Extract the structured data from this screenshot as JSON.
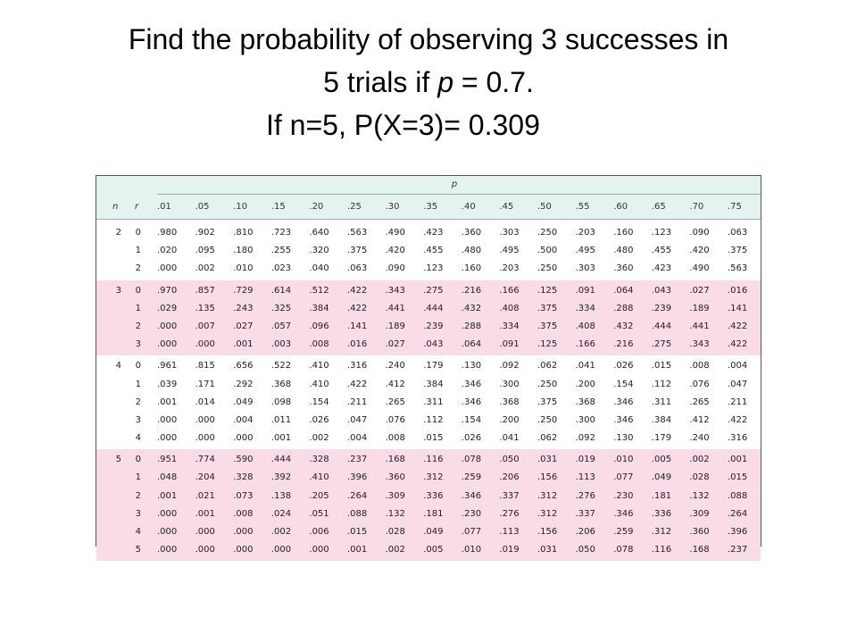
{
  "title": {
    "line1": "Find the probability of observing 3 successes in",
    "line2_prefix": "5 trials if ",
    "line2_var": "p",
    "line2_suffix": " = 0.7.",
    "line3": "If n=5, P(X=3)= 0.309"
  },
  "table": {
    "p_label": "p",
    "n_label": "n",
    "r_label": "r",
    "p_values": [
      ".01",
      ".05",
      ".10",
      ".15",
      ".20",
      ".25",
      ".30",
      ".35",
      ".40",
      ".45",
      ".50",
      ".55",
      ".60",
      ".65",
      ".70",
      ".75"
    ],
    "groups": [
      {
        "n": "2",
        "rows": [
          {
            "r": "0",
            "values": [
              ".980",
              ".902",
              ".810",
              ".723",
              ".640",
              ".563",
              ".490",
              ".423",
              ".360",
              ".303",
              ".250",
              ".203",
              ".160",
              ".123",
              ".090",
              ".063"
            ]
          },
          {
            "r": "1",
            "values": [
              ".020",
              ".095",
              ".180",
              ".255",
              ".320",
              ".375",
              ".420",
              ".455",
              ".480",
              ".495",
              ".500",
              ".495",
              ".480",
              ".455",
              ".420",
              ".375"
            ]
          },
          {
            "r": "2",
            "values": [
              ".000",
              ".002",
              ".010",
              ".023",
              ".040",
              ".063",
              ".090",
              ".123",
              ".160",
              ".203",
              ".250",
              ".303",
              ".360",
              ".423",
              ".490",
              ".563"
            ]
          }
        ]
      },
      {
        "n": "3",
        "rows": [
          {
            "r": "0",
            "values": [
              ".970",
              ".857",
              ".729",
              ".614",
              ".512",
              ".422",
              ".343",
              ".275",
              ".216",
              ".166",
              ".125",
              ".091",
              ".064",
              ".043",
              ".027",
              ".016"
            ]
          },
          {
            "r": "1",
            "values": [
              ".029",
              ".135",
              ".243",
              ".325",
              ".384",
              ".422",
              ".441",
              ".444",
              ".432",
              ".408",
              ".375",
              ".334",
              ".288",
              ".239",
              ".189",
              ".141"
            ]
          },
          {
            "r": "2",
            "values": [
              ".000",
              ".007",
              ".027",
              ".057",
              ".096",
              ".141",
              ".189",
              ".239",
              ".288",
              ".334",
              ".375",
              ".408",
              ".432",
              ".444",
              ".441",
              ".422"
            ]
          },
          {
            "r": "3",
            "values": [
              ".000",
              ".000",
              ".001",
              ".003",
              ".008",
              ".016",
              ".027",
              ".043",
              ".064",
              ".091",
              ".125",
              ".166",
              ".216",
              ".275",
              ".343",
              ".422"
            ]
          }
        ]
      },
      {
        "n": "4",
        "rows": [
          {
            "r": "0",
            "values": [
              ".961",
              ".815",
              ".656",
              ".522",
              ".410",
              ".316",
              ".240",
              ".179",
              ".130",
              ".092",
              ".062",
              ".041",
              ".026",
              ".015",
              ".008",
              ".004"
            ]
          },
          {
            "r": "1",
            "values": [
              ".039",
              ".171",
              ".292",
              ".368",
              ".410",
              ".422",
              ".412",
              ".384",
              ".346",
              ".300",
              ".250",
              ".200",
              ".154",
              ".112",
              ".076",
              ".047"
            ]
          },
          {
            "r": "2",
            "values": [
              ".001",
              ".014",
              ".049",
              ".098",
              ".154",
              ".211",
              ".265",
              ".311",
              ".346",
              ".368",
              ".375",
              ".368",
              ".346",
              ".311",
              ".265",
              ".211"
            ]
          },
          {
            "r": "3",
            "values": [
              ".000",
              ".000",
              ".004",
              ".011",
              ".026",
              ".047",
              ".076",
              ".112",
              ".154",
              ".200",
              ".250",
              ".300",
              ".346",
              ".384",
              ".412",
              ".422"
            ]
          },
          {
            "r": "4",
            "values": [
              ".000",
              ".000",
              ".000",
              ".001",
              ".002",
              ".004",
              ".008",
              ".015",
              ".026",
              ".041",
              ".062",
              ".092",
              ".130",
              ".179",
              ".240",
              ".316"
            ]
          }
        ]
      },
      {
        "n": "5",
        "rows": [
          {
            "r": "0",
            "values": [
              ".951",
              ".774",
              ".590",
              ".444",
              ".328",
              ".237",
              ".168",
              ".116",
              ".078",
              ".050",
              ".031",
              ".019",
              ".010",
              ".005",
              ".002",
              ".001"
            ]
          },
          {
            "r": "1",
            "values": [
              ".048",
              ".204",
              ".328",
              ".392",
              ".410",
              ".396",
              ".360",
              ".312",
              ".259",
              ".206",
              ".156",
              ".113",
              ".077",
              ".049",
              ".028",
              ".015"
            ]
          },
          {
            "r": "2",
            "values": [
              ".001",
              ".021",
              ".073",
              ".138",
              ".205",
              ".264",
              ".309",
              ".336",
              ".346",
              ".337",
              ".312",
              ".276",
              ".230",
              ".181",
              ".132",
              ".088"
            ]
          },
          {
            "r": "3",
            "values": [
              ".000",
              ".001",
              ".008",
              ".024",
              ".051",
              ".088",
              ".132",
              ".181",
              ".230",
              ".276",
              ".312",
              ".337",
              ".346",
              ".336",
              ".309",
              ".264"
            ]
          },
          {
            "r": "4",
            "values": [
              ".000",
              ".000",
              ".000",
              ".002",
              ".006",
              ".015",
              ".028",
              ".049",
              ".077",
              ".113",
              ".156",
              ".206",
              ".259",
              ".312",
              ".360",
              ".396"
            ]
          },
          {
            "r": "5",
            "values": [
              ".000",
              ".000",
              ".000",
              ".000",
              ".000",
              ".001",
              ".002",
              ".005",
              ".010",
              ".019",
              ".031",
              ".050",
              ".078",
              ".116",
              ".168",
              ".237"
            ]
          }
        ]
      }
    ],
    "colors": {
      "header_bg": "#e4f3ef",
      "pink_bg": "#f9dce7"
    }
  }
}
